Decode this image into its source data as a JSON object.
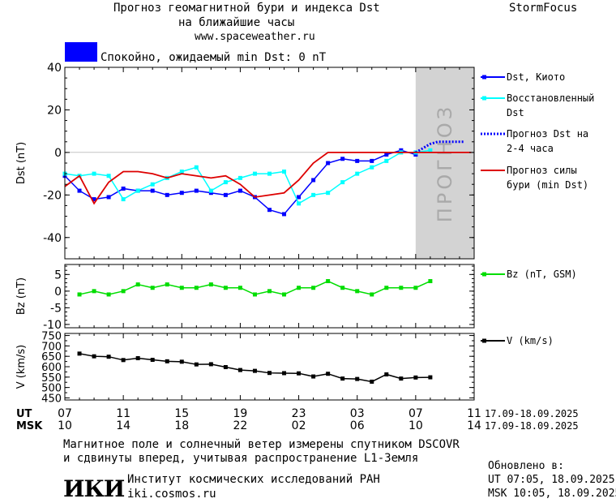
{
  "header": {
    "title_line1": "Прогноз геомагнитной бури и индекса Dst",
    "title_line2": "на ближайшие часы",
    "url": "www.spaceweather.ru",
    "brand": "StormFocus",
    "status": "Спокойно, ожидаемый min Dst: 0 nT",
    "status_color": "#0000ff"
  },
  "footer": {
    "note_line1": "Магнитное поле и солнечный ветер измерены спутником DSCOVR",
    "note_line2": "и сдвинуты вперед, учитывая распространение L1-Земля",
    "institute": "Институт космических исследований РАН",
    "institute_url": "iki.cosmos.ru",
    "logo_text": "ИКИ",
    "updated_label": "Обновлено в:",
    "updated_ut": "UT   07:05, 18.09.2025",
    "updated_msk": "MSK 10:05, 18.09.2025"
  },
  "chart_data": [
    {
      "type": "line",
      "ylabel": "Dst (nT)",
      "ylim": [
        -50,
        40
      ],
      "yticks": [
        40,
        20,
        0,
        -20,
        -40
      ],
      "forecast_label": "ПРОГНОЗ",
      "legend_position": "right",
      "series": [
        {
          "name": "Dst, Киото",
          "color": "#0000ff",
          "marker": "square",
          "x": [
            7.0,
            8.0,
            9.0,
            10.0,
            11.0,
            12.0,
            13.0,
            14.0,
            15.0,
            16.0,
            17.0,
            18.0,
            19.0,
            20.0,
            21.0,
            22.0,
            23.0,
            24.0,
            25.0,
            26.0,
            27.0,
            28.0,
            29.0,
            30.0,
            31.0
          ],
          "values": [
            -11,
            -18,
            -22,
            -21,
            -17,
            -18,
            -18,
            -20,
            -19,
            -18,
            -19,
            -20,
            -18,
            -21,
            -27,
            -29,
            -21,
            -13,
            -5,
            -3,
            -4,
            -4,
            -1,
            1,
            -1
          ]
        },
        {
          "name": "Восстановленный Dst",
          "color": "#00ffff",
          "marker": "square",
          "x": [
            7.0,
            8.0,
            9.0,
            10.0,
            11.0,
            12.0,
            13.0,
            14.0,
            15.0,
            16.0,
            17.0,
            18.0,
            19.0,
            20.0,
            21.0,
            22.0,
            23.0,
            24.0,
            25.0,
            26.0,
            27.0,
            28.0,
            29.0,
            30.0,
            31.0,
            32.0
          ],
          "values": [
            -10,
            -11,
            -10,
            -11,
            -22,
            -18,
            -15,
            -12,
            -9,
            -7,
            -18,
            -14,
            -12,
            -10,
            -10,
            -9,
            -24,
            -20,
            -19,
            -14,
            -10,
            -7,
            -4,
            0,
            0,
            1
          ]
        },
        {
          "name": "Прогноз Dst на 2-4 часа",
          "color": "#0000ff",
          "style": "dotted",
          "x": [
            31.0,
            31.5,
            32.0,
            32.5,
            33.0,
            34.3
          ],
          "values": [
            0,
            2,
            4,
            5,
            5,
            5
          ]
        },
        {
          "name": "Прогноз силы бури (min Dst)",
          "color": "#dd0000",
          "style": "solid",
          "x": [
            7.0,
            8.0,
            9.0,
            10.0,
            11.0,
            12.0,
            13.0,
            14.0,
            15.0,
            16.0,
            17.0,
            18.0,
            19.0,
            20.0,
            21.0,
            22.0,
            23.0,
            24.0,
            25.0,
            26.0,
            27.0,
            28.0,
            29.0,
            30.0,
            31.0,
            34.8
          ],
          "values": [
            -16,
            -11,
            -24,
            -14,
            -9,
            -9,
            -10,
            -12,
            -10,
            -11,
            -12,
            -11,
            -15,
            -21,
            -20,
            -19,
            -13,
            -5,
            0,
            0,
            0,
            0,
            0,
            0,
            0,
            0
          ]
        }
      ]
    },
    {
      "type": "line",
      "ylabel": "Bz (nT)",
      "ylim": [
        -11,
        8
      ],
      "yticks": [
        5,
        0,
        -5,
        -10
      ],
      "series": [
        {
          "name": "Bz (nT, GSM)",
          "color": "#00dd00",
          "marker": "square",
          "x": [
            8.0,
            9.0,
            10.0,
            11.0,
            12.0,
            13.0,
            14.0,
            15.0,
            16.0,
            17.0,
            18.0,
            19.0,
            20.0,
            21.0,
            22.0,
            23.0,
            24.0,
            25.0,
            26.0,
            27.0,
            28.0,
            29.0,
            30.0,
            31.0,
            32.0
          ],
          "values": [
            -1,
            0,
            -1,
            0,
            2,
            1,
            2,
            1,
            1,
            2,
            1,
            1,
            -1,
            0,
            -1,
            1,
            1,
            3,
            1,
            0,
            -1,
            1,
            1,
            1,
            3
          ]
        }
      ]
    },
    {
      "type": "line",
      "ylabel": "V (km/s)",
      "ylim": [
        440,
        760
      ],
      "yticks": [
        750,
        700,
        650,
        600,
        550,
        500,
        450
      ],
      "series": [
        {
          "name": "V (km/s)",
          "color": "#000000",
          "marker": "square",
          "x": [
            8.0,
            9.0,
            10.0,
            11.0,
            12.0,
            13.0,
            14.0,
            15.0,
            16.0,
            17.0,
            18.0,
            19.0,
            20.0,
            21.0,
            22.0,
            23.0,
            24.0,
            25.0,
            26.0,
            27.0,
            28.0,
            29.0,
            30.0,
            31.0,
            32.0
          ],
          "values": [
            663,
            650,
            648,
            632,
            641,
            633,
            626,
            624,
            611,
            612,
            598,
            584,
            580,
            570,
            569,
            568,
            553,
            566,
            543,
            541,
            528,
            563,
            543,
            548,
            549
          ]
        }
      ]
    }
  ],
  "time_axis": {
    "ut_label": "UT",
    "msk_label": "MSK",
    "ut_ticks": [
      "07",
      "11",
      "15",
      "19",
      "23",
      "03",
      "07",
      "11"
    ],
    "msk_ticks": [
      "10",
      "14",
      "18",
      "22",
      "02",
      "06",
      "10",
      "14"
    ],
    "date_range": "17.09-18.09.2025"
  }
}
